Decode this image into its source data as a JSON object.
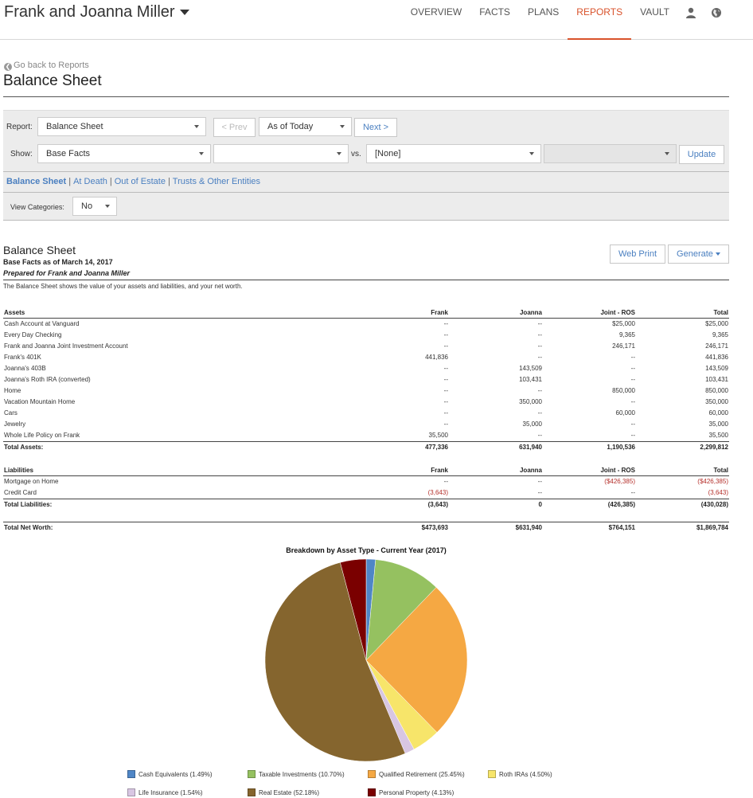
{
  "header": {
    "client_name": "Frank and Joanna Miller",
    "nav": [
      "OVERVIEW",
      "FACTS",
      "PLANS",
      "REPORTS",
      "VAULT"
    ],
    "active_tab": "REPORTS",
    "icons": [
      "user-icon",
      "globe-icon"
    ]
  },
  "page": {
    "go_back": "Go back to Reports",
    "title": "Balance Sheet"
  },
  "controls": {
    "report_label": "Report:",
    "report_value": "Balance Sheet",
    "prev_label": "< Prev",
    "as_of_value": "As of Today",
    "next_label": "Next >",
    "show_label": "Show:",
    "show_value": "Base Facts",
    "show_second_value": "",
    "vs_label": "vs.",
    "vs_value": "[None]",
    "vs_second_value": "",
    "update_label": "Update",
    "links": [
      "Balance Sheet",
      "At Death",
      "Out of Estate",
      "Trusts & Other Entities"
    ],
    "view_categories_label": "View Categories:",
    "view_categories_value": "No"
  },
  "report": {
    "title": "Balance Sheet",
    "subtitle": "Base Facts as of March 14, 2017",
    "prepared_for": "Prepared for Frank and Joanna Miller",
    "description": "The Balance Sheet shows the value of your assets and liabilities, and your net worth.",
    "web_print_label": "Web Print",
    "generate_label": "Generate",
    "columns": [
      "Frank",
      "Joanna",
      "Joint - ROS",
      "Total"
    ],
    "assets_heading": "Assets",
    "assets": [
      {
        "name": "Cash Account at Vanguard",
        "frank": "--",
        "joanna": "--",
        "joint": "$25,000",
        "total": "$25,000"
      },
      {
        "name": "Every Day Checking",
        "frank": "--",
        "joanna": "--",
        "joint": "9,365",
        "total": "9,365"
      },
      {
        "name": "Frank and Joanna Joint Investment Account",
        "frank": "--",
        "joanna": "--",
        "joint": "246,171",
        "total": "246,171"
      },
      {
        "name": "Frank's 401K",
        "frank": "441,836",
        "joanna": "--",
        "joint": "--",
        "total": "441,836"
      },
      {
        "name": "Joanna's 403B",
        "frank": "--",
        "joanna": "143,509",
        "joint": "--",
        "total": "143,509"
      },
      {
        "name": "Joanna's Roth IRA (converted)",
        "frank": "--",
        "joanna": "103,431",
        "joint": "--",
        "total": "103,431"
      },
      {
        "name": "Home",
        "frank": "--",
        "joanna": "--",
        "joint": "850,000",
        "total": "850,000"
      },
      {
        "name": "Vacation Mountain Home",
        "frank": "--",
        "joanna": "350,000",
        "joint": "--",
        "total": "350,000"
      },
      {
        "name": "Cars",
        "frank": "--",
        "joanna": "--",
        "joint": "60,000",
        "total": "60,000"
      },
      {
        "name": "Jewelry",
        "frank": "--",
        "joanna": "35,000",
        "joint": "--",
        "total": "35,000"
      },
      {
        "name": "Whole Life Policy on Frank",
        "frank": "35,500",
        "joanna": "--",
        "joint": "--",
        "total": "35,500"
      }
    ],
    "total_assets": {
      "name": "Total Assets:",
      "frank": "477,336",
      "joanna": "631,940",
      "joint": "1,190,536",
      "total": "2,299,812"
    },
    "liabilities_heading": "Liabilities",
    "liabilities": [
      {
        "name": "Mortgage on Home",
        "frank": "--",
        "joanna": "--",
        "joint": "($426,385)",
        "total": "($426,385)"
      },
      {
        "name": "Credit Card",
        "frank": "(3,643)",
        "joanna": "--",
        "joint": "--",
        "total": "(3,643)"
      }
    ],
    "total_liabilities": {
      "name": "Total Liabilities:",
      "frank": "(3,643)",
      "joanna": "0",
      "joint": "(426,385)",
      "total": "(430,028)"
    },
    "net_worth": {
      "name": "Total Net Worth:",
      "frank": "$473,693",
      "joanna": "$631,940",
      "joint": "$764,151",
      "total": "$1,869,784"
    }
  },
  "chart_data": {
    "type": "pie",
    "title": "Breakdown by Asset Type - Current Year (2017)",
    "categories": [
      "Cash Equivalents",
      "Taxable Investments",
      "Qualified Retirement",
      "Roth IRAs",
      "Life Insurance",
      "Real Estate",
      "Personal Property"
    ],
    "values": [
      1.49,
      10.7,
      25.45,
      4.5,
      1.54,
      52.18,
      4.13
    ],
    "legend_labels": [
      "Cash Equivalents (1.49%)",
      "Taxable Investments (10.70%)",
      "Qualified Retirement (25.45%)",
      "Roth IRAs (4.50%)",
      "Life Insurance (1.54%)",
      "Real Estate (52.18%)",
      "Personal Property (4.13%)"
    ],
    "colors": [
      "#4f86c6",
      "#95c160",
      "#f5a843",
      "#f7e56a",
      "#d8c6e2",
      "#85652e",
      "#7a0000"
    ],
    "legend_position": "bottom"
  }
}
